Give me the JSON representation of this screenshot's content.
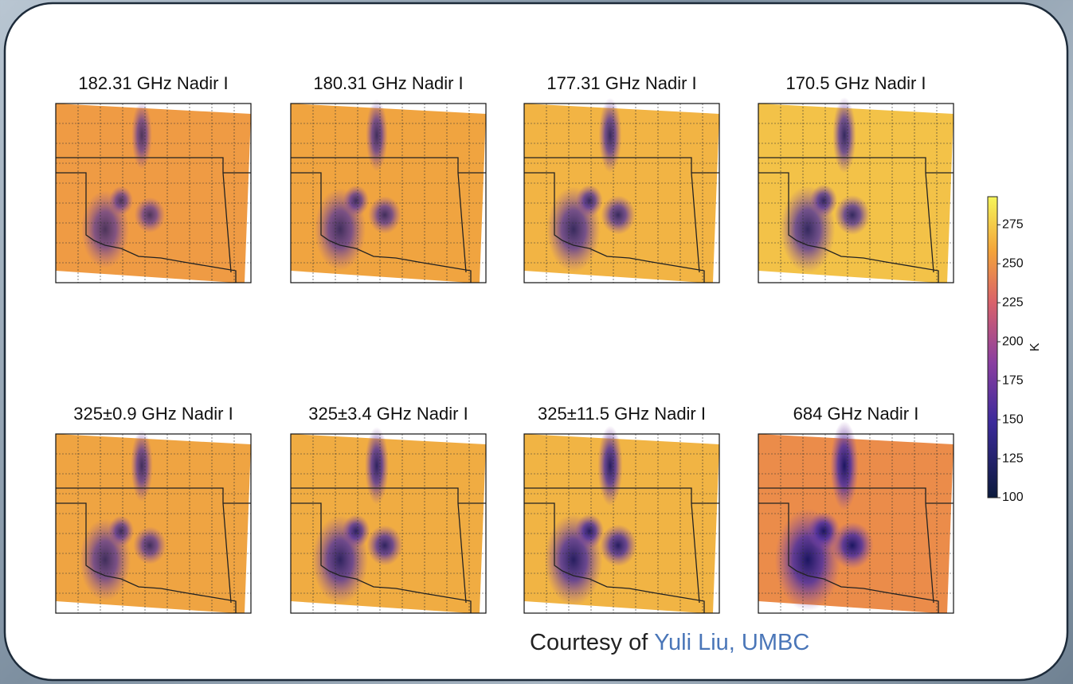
{
  "panels": [
    {
      "title": "182.31 GHz Nadir I"
    },
    {
      "title": "180.31 GHz Nadir I"
    },
    {
      "title": "177.31 GHz Nadir I"
    },
    {
      "title": "170.5 GHz Nadir I"
    },
    {
      "title": "325±0.9 GHz Nadir I"
    },
    {
      "title": "325±3.4 GHz Nadir I"
    },
    {
      "title": "325±11.5 GHz Nadir I"
    },
    {
      "title": "684 GHz Nadir I"
    }
  ],
  "colorbar": {
    "label": "K",
    "lim": [
      100,
      293
    ],
    "ticks": [
      100,
      125,
      150,
      175,
      200,
      225,
      250,
      275
    ]
  },
  "credit": {
    "prefix": "Courtesy of",
    "name": "Yuli Liu, UMBC"
  }
}
